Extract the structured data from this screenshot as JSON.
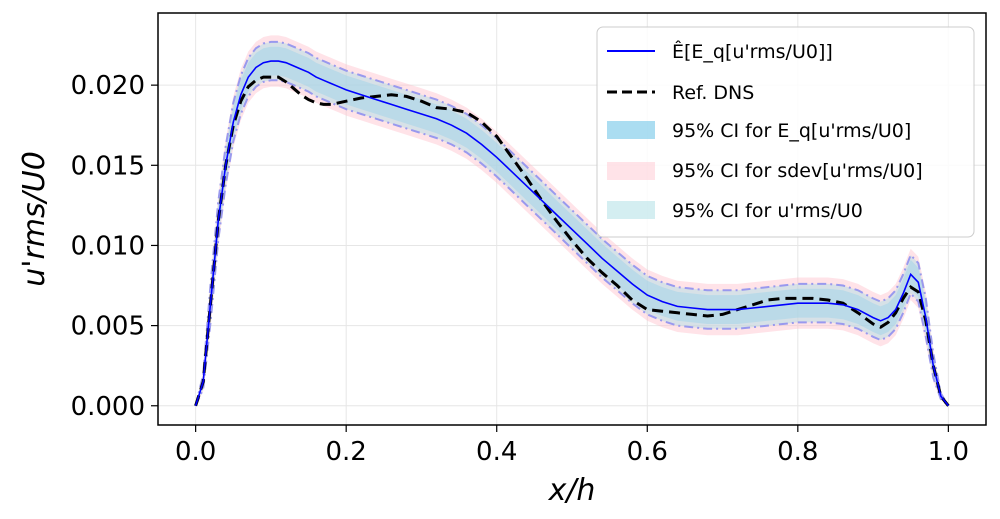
{
  "chart_data": {
    "type": "line",
    "title": "",
    "xlabel": "x/h",
    "ylabel": "u'rms/U0",
    "xlim": [
      -0.05,
      1.05
    ],
    "ylim": [
      -0.0012,
      0.0245
    ],
    "grid": true,
    "legend_position": "top-right",
    "xticks": [
      0.0,
      0.2,
      0.4,
      0.6,
      0.8,
      1.0
    ],
    "xtick_labels": [
      "0.0",
      "0.2",
      "0.4",
      "0.6",
      "0.8",
      "1.0"
    ],
    "yticks": [
      0.0,
      0.005,
      0.01,
      0.015,
      0.02
    ],
    "ytick_labels": [
      "0.000",
      "0.005",
      "0.010",
      "0.015",
      "0.020"
    ],
    "colors": {
      "mean": "#0000ff",
      "dns": "#000000",
      "ci_mean": "#87ceeb",
      "ci_sdev": "#ffc0cb",
      "ci_total": "#b0e0e6",
      "ci_edge": "#9999ee"
    },
    "legend": [
      {
        "key": "mean",
        "label": "Ê[E_q[u'rms/U0]]",
        "style": "line"
      },
      {
        "key": "dns",
        "label": "Ref. DNS",
        "style": "dashed"
      },
      {
        "key": "ci_mean",
        "label": "95% CI for E_q[u'rms/U0]",
        "style": "patch"
      },
      {
        "key": "ci_sdev",
        "label": "95% CI for sdev[u'rms/U0]",
        "style": "patch"
      },
      {
        "key": "ci_total",
        "label": "95% CI for u'rms/U0",
        "style": "patch"
      }
    ],
    "x": [
      0.0,
      0.01,
      0.02,
      0.03,
      0.04,
      0.05,
      0.06,
      0.07,
      0.08,
      0.09,
      0.1,
      0.11,
      0.12,
      0.13,
      0.14,
      0.15,
      0.16,
      0.17,
      0.18,
      0.19,
      0.2,
      0.22,
      0.24,
      0.26,
      0.28,
      0.3,
      0.32,
      0.34,
      0.36,
      0.38,
      0.4,
      0.42,
      0.44,
      0.46,
      0.48,
      0.5,
      0.52,
      0.54,
      0.56,
      0.58,
      0.6,
      0.62,
      0.64,
      0.66,
      0.68,
      0.7,
      0.72,
      0.74,
      0.76,
      0.78,
      0.8,
      0.82,
      0.84,
      0.86,
      0.88,
      0.9,
      0.91,
      0.92,
      0.93,
      0.94,
      0.95,
      0.96,
      0.97,
      0.98,
      0.99,
      1.0
    ],
    "series": [
      {
        "name": "mean",
        "values": [
          0.0,
          0.0015,
          0.0065,
          0.0115,
          0.015,
          0.0177,
          0.0194,
          0.0205,
          0.0211,
          0.0214,
          0.0215,
          0.0215,
          0.0214,
          0.0212,
          0.021,
          0.0208,
          0.0205,
          0.0203,
          0.0201,
          0.0199,
          0.0197,
          0.0194,
          0.0191,
          0.0188,
          0.0185,
          0.0182,
          0.0179,
          0.0175,
          0.017,
          0.0163,
          0.0155,
          0.0146,
          0.0137,
          0.0128,
          0.0119,
          0.011,
          0.0101,
          0.0092,
          0.0084,
          0.0076,
          0.0069,
          0.0065,
          0.0062,
          0.0061,
          0.006,
          0.006,
          0.006,
          0.0061,
          0.0062,
          0.0063,
          0.0064,
          0.0064,
          0.0064,
          0.0063,
          0.006,
          0.0055,
          0.0053,
          0.0055,
          0.006,
          0.007,
          0.0082,
          0.0077,
          0.0055,
          0.0025,
          0.0006,
          0.0
        ]
      },
      {
        "name": "dns",
        "values": [
          0.0,
          0.0015,
          0.0065,
          0.0115,
          0.015,
          0.0175,
          0.019,
          0.0199,
          0.0203,
          0.0205,
          0.0205,
          0.0205,
          0.0202,
          0.0198,
          0.0194,
          0.0191,
          0.0189,
          0.0188,
          0.0188,
          0.0189,
          0.019,
          0.0192,
          0.0193,
          0.0194,
          0.0193,
          0.019,
          0.0186,
          0.0185,
          0.0183,
          0.0177,
          0.0168,
          0.0155,
          0.0142,
          0.0128,
          0.0115,
          0.0103,
          0.0092,
          0.0083,
          0.0075,
          0.0066,
          0.006,
          0.0059,
          0.0058,
          0.0057,
          0.0056,
          0.0057,
          0.006,
          0.0063,
          0.0066,
          0.0067,
          0.0067,
          0.0067,
          0.0066,
          0.0064,
          0.0058,
          0.0051,
          0.0049,
          0.0052,
          0.0058,
          0.0067,
          0.0074,
          0.0071,
          0.0053,
          0.0025,
          0.0006,
          0.0
        ]
      }
    ],
    "ci_mean_halfwidth": 0.0009,
    "ci_total_halfwidth": 0.0012,
    "ci_sdev_halfwidth": 0.0016
  }
}
